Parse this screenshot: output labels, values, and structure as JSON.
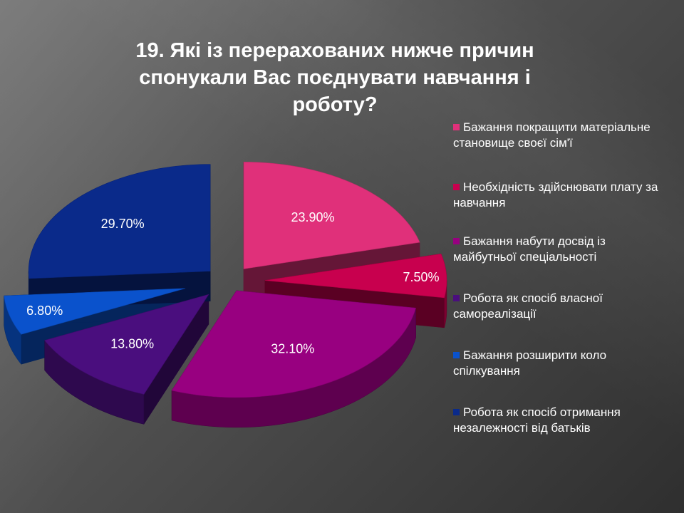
{
  "slide": {
    "title": "19. Які із перерахованих нижче причин спонукали Вас поєднувати навчання і роботу?"
  },
  "chart_data": {
    "type": "pie",
    "title": "19. Які із перерахованих нижче причин спонукали Вас поєднувати навчання і роботу?",
    "legend_position": "right",
    "categories": [
      "Бажання покращити матеріальне становище своєї сім'ї",
      "Необхідність здійснювати плату за навчання",
      "Бажання набути досвід із майбутньої спеціальності",
      "Робота як спосіб власної самореалізації",
      "Бажання розширити коло спілкування",
      "Робота як спосіб отримання незалежності від батьків"
    ],
    "values": [
      23.9,
      7.5,
      32.1,
      13.8,
      6.8,
      29.7
    ],
    "labels": [
      "23.90%",
      "7.50%",
      "32.10%",
      "13.80%",
      "6.80%",
      "29.70%"
    ],
    "colors": [
      "#e0307a",
      "#c8004e",
      "#980080",
      "#4a0e7e",
      "#0a52cc",
      "#0a2a8a"
    ]
  }
}
